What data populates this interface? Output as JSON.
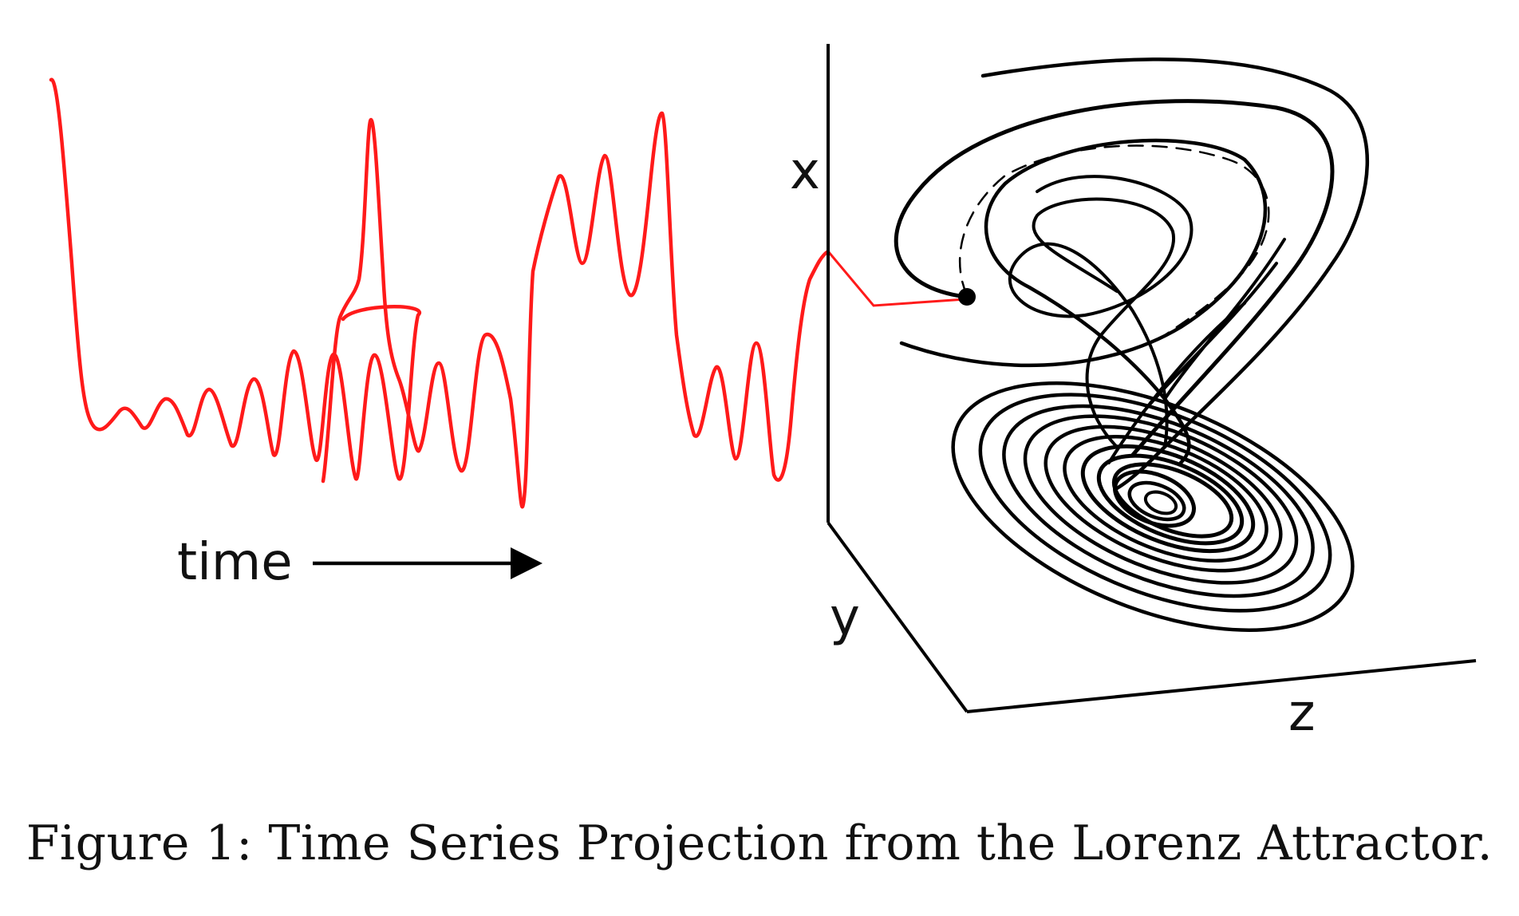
{
  "figure": {
    "time_label": "time",
    "axes": {
      "x_label": "x",
      "y_label": "y",
      "z_label": "z"
    },
    "caption": "Figure 1: Time Series Projection from the Lorenz Attractor."
  },
  "colors": {
    "time_series": "#ff1a1a",
    "attractor": "#000000",
    "axes": "#000000"
  }
}
